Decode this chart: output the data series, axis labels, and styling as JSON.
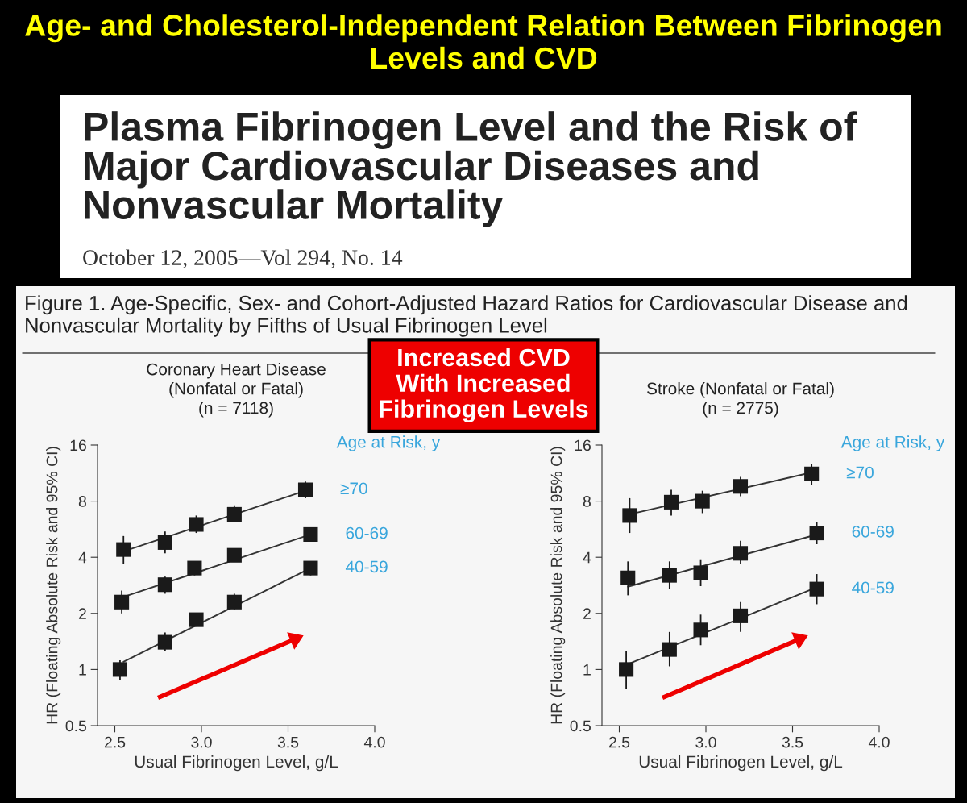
{
  "chart_data": [
    {
      "type": "scatter",
      "title": "Coronary Heart Disease\n(Nonfatal or Fatal)\n(n = 7118)",
      "xlabel": "Usual Fibrinogen Level, g/L",
      "ylabel": "HR (Floating Absolute Risk and 95% CI)",
      "legend_title": "Age at Risk, y",
      "log": "y",
      "marker": "square",
      "xlim": [
        2.4,
        4.0
      ],
      "xticks": [
        {
          "value": 2.5,
          "label": "2.5"
        },
        {
          "value": 3,
          "label": "3.0"
        },
        {
          "value": 3.5,
          "label": "3.5"
        },
        {
          "value": 4,
          "label": "4.0"
        }
      ],
      "ylim": [
        0.5,
        16
      ],
      "yticks": [
        0.5,
        1,
        2,
        4,
        8,
        16
      ],
      "annotations": [
        "Age- and Cholesterol-Independent Relation Between Fibrinogen Levels and CVD",
        "Plasma Fibrinogen Level and the Risk of Major Cardiovascular Diseases and Nonvascular Mortality",
        "October 12, 2005—Vol 294, No. 14",
        "Figure 1. Age-Specific, Sex- and Cohort-Adjusted Hazard Ratios for Cardiovascular Disease and Nonvascular Mortality by Fifths of Usual Fibrinogen Level",
        "Increased CVD\nWith Increased\nFibrinogen Levels"
      ],
      "series": [
        {
          "name": "≥70",
          "color": "#1a1a1a",
          "x": [
            2.55,
            2.79,
            2.97,
            3.19,
            3.6
          ],
          "values": [
            4.4,
            4.8,
            6.0,
            6.8,
            9.2
          ],
          "errors": [
            [
              3.7,
              5.2
            ],
            [
              4.2,
              5.5
            ],
            [
              5.4,
              6.7
            ],
            [
              6.2,
              7.6
            ],
            [
              8.3,
              10.2
            ]
          ]
        },
        {
          "name": "60-69",
          "color": "#1a1a1a",
          "x": [
            2.54,
            2.79,
            2.96,
            3.19,
            3.63
          ],
          "values": [
            2.3,
            2.85,
            3.5,
            4.1,
            5.3
          ],
          "errors": [
            [
              2.0,
              2.65
            ],
            [
              2.55,
              3.15
            ],
            [
              3.2,
              3.8
            ],
            null,
            null
          ]
        },
        {
          "name": "40-59",
          "color": "#1a1a1a",
          "x": [
            2.53,
            2.79,
            2.97,
            3.19,
            3.63
          ],
          "values": [
            1.0,
            1.4,
            1.85,
            2.3,
            3.5
          ],
          "errors": [
            [
              0.88,
              1.12
            ],
            [
              1.25,
              1.58
            ],
            [
              1.7,
              2.0
            ],
            [
              2.1,
              2.55
            ],
            [
              3.2,
              3.8
            ]
          ]
        },
        {
          "type": "line",
          "marker": "none",
          "color": "#333333",
          "x": [
            2.55,
            3.6
          ],
          "values": [
            4.3,
            9.1
          ]
        },
        {
          "type": "line",
          "marker": "none",
          "color": "#333333",
          "x": [
            2.55,
            3.63
          ],
          "values": [
            2.45,
            5.3
          ]
        },
        {
          "type": "line",
          "marker": "none",
          "color": "#333333",
          "x": [
            2.55,
            3.63
          ],
          "values": [
            1.1,
            3.5
          ]
        }
      ]
    },
    {
      "type": "scatter",
      "title": "Stroke (Nonfatal or Fatal)\n(n = 2775)",
      "xlabel": "Usual Fibrinogen Level, g/L",
      "ylabel": "HR (Floating Absolute Risk and 95% CI)",
      "legend_title": "Age at Risk, y",
      "log": "y",
      "marker": "square",
      "xlim": [
        2.4,
        4.0
      ],
      "xticks": [
        {
          "value": 2.5,
          "label": "2.5"
        },
        {
          "value": 3,
          "label": "3.0"
        },
        {
          "value": 3.5,
          "label": "3.5"
        },
        {
          "value": 4,
          "label": "4.0"
        }
      ],
      "ylim": [
        0.5,
        16
      ],
      "yticks": [
        0.5,
        1,
        2,
        4,
        8,
        16
      ],
      "series": [
        {
          "name": "≥70",
          "color": "#1a1a1a",
          "x": [
            2.56,
            2.8,
            2.98,
            3.2,
            3.61
          ],
          "values": [
            6.7,
            7.9,
            8.0,
            9.6,
            11.2
          ],
          "errors": [
            [
              5.4,
              8.3
            ],
            [
              6.7,
              9.2
            ],
            [
              6.9,
              9.1
            ],
            [
              8.5,
              10.8
            ],
            [
              9.8,
              12.7
            ]
          ]
        },
        {
          "name": "60-69",
          "color": "#1a1a1a",
          "x": [
            2.55,
            2.79,
            2.97,
            3.2,
            3.64
          ],
          "values": [
            3.1,
            3.2,
            3.3,
            4.2,
            5.4
          ],
          "errors": [
            [
              2.5,
              3.8
            ],
            [
              2.7,
              3.8
            ],
            [
              2.8,
              3.9
            ],
            [
              3.7,
              4.9
            ],
            [
              4.7,
              6.2
            ]
          ]
        },
        {
          "name": "40-59",
          "color": "#1a1a1a",
          "x": [
            2.54,
            2.79,
            2.97,
            3.2,
            3.64
          ],
          "values": [
            1.0,
            1.28,
            1.63,
            1.94,
            2.7
          ],
          "errors": [
            [
              0.79,
              1.26
            ],
            [
              1.04,
              1.59
            ],
            [
              1.35,
              1.97
            ],
            [
              1.59,
              2.3
            ],
            [
              2.24,
              3.25
            ]
          ]
        },
        {
          "type": "line",
          "marker": "none",
          "color": "#333333",
          "x": [
            2.56,
            3.61
          ],
          "values": [
            6.8,
            11.4
          ]
        },
        {
          "type": "line",
          "marker": "none",
          "color": "#333333",
          "x": [
            2.55,
            3.64
          ],
          "values": [
            2.78,
            5.3
          ]
        },
        {
          "type": "line",
          "marker": "none",
          "color": "#333333",
          "x": [
            2.54,
            3.64
          ],
          "values": [
            1.06,
            2.76
          ]
        }
      ]
    }
  ]
}
